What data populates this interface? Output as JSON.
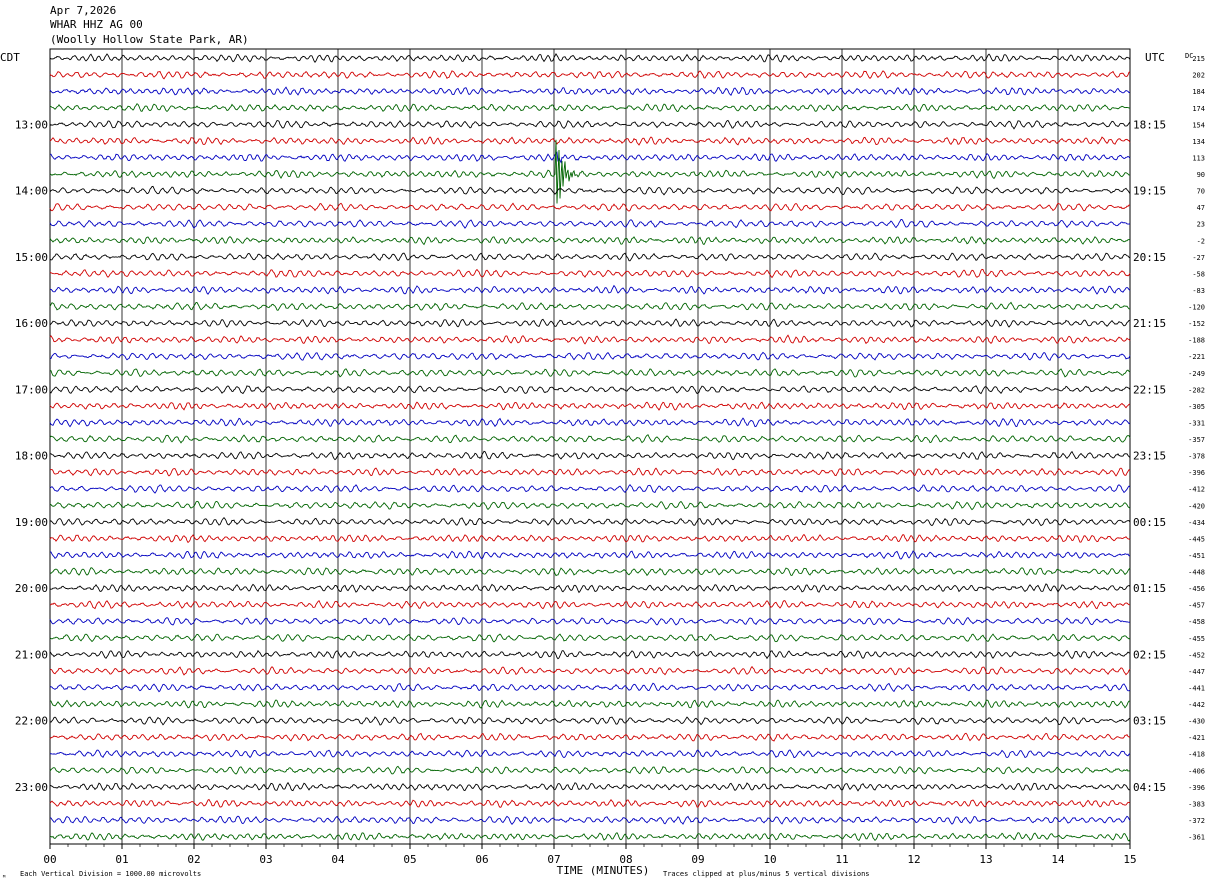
{
  "header": {
    "date": "Apr 7,2026",
    "channel": "WHAR HHZ AG 00",
    "station": "(Woolly Hollow State Park, AR)"
  },
  "left_tz": "CDT",
  "right_tz": "UTC",
  "dc_label": "DC",
  "footer": {
    "scale_note": "Each Vertical Division = 1000.00 microvolts",
    "clip_note": "Traces clipped at plus/minus 5 vertical divisions",
    "corner_mark": "ᴹ"
  },
  "colors": {
    "trace_cycle": [
      "#000000",
      "#d00000",
      "#0000c0",
      "#006400"
    ],
    "grid": "#000000"
  },
  "chart_data": {
    "type": "line",
    "xlabel": "TIME (MINUTES)",
    "xlim": [
      0,
      15
    ],
    "x_ticks": [
      "00",
      "01",
      "02",
      "03",
      "04",
      "05",
      "06",
      "07",
      "08",
      "09",
      "10",
      "11",
      "12",
      "13",
      "14",
      "15"
    ],
    "left_hour_labels": [
      "13:00",
      "14:00",
      "15:00",
      "16:00",
      "17:00",
      "18:00",
      "19:00",
      "20:00",
      "21:00",
      "22:00",
      "23:00"
    ],
    "right_hour_labels": [
      "18:15",
      "19:15",
      "20:15",
      "21:15",
      "22:15",
      "23:15",
      "00:15",
      "01:15",
      "02:15",
      "03:15",
      "04:15"
    ],
    "dc_offsets": [
      "215",
      "202",
      "184",
      "174",
      "154",
      "134",
      "113",
      "90",
      "70",
      "47",
      "23",
      "-2",
      "-27",
      "-58",
      "-83",
      "-120",
      "-152",
      "-188",
      "-221",
      "-249",
      "-282",
      "-305",
      "-331",
      "-357",
      "-378",
      "-396",
      "-412",
      "-420",
      "-434",
      "-445",
      "-451",
      "-448",
      "-456",
      "-457",
      "-458",
      "-455",
      "-452",
      "-447",
      "-441",
      "-442",
      "-430",
      "-421",
      "-418",
      "-406",
      "-396",
      "-383",
      "-372",
      "-361"
    ],
    "trace_count": 48,
    "event": {
      "trace": 7,
      "minute": 7.05,
      "amplitude_divisions": 2.2
    }
  }
}
